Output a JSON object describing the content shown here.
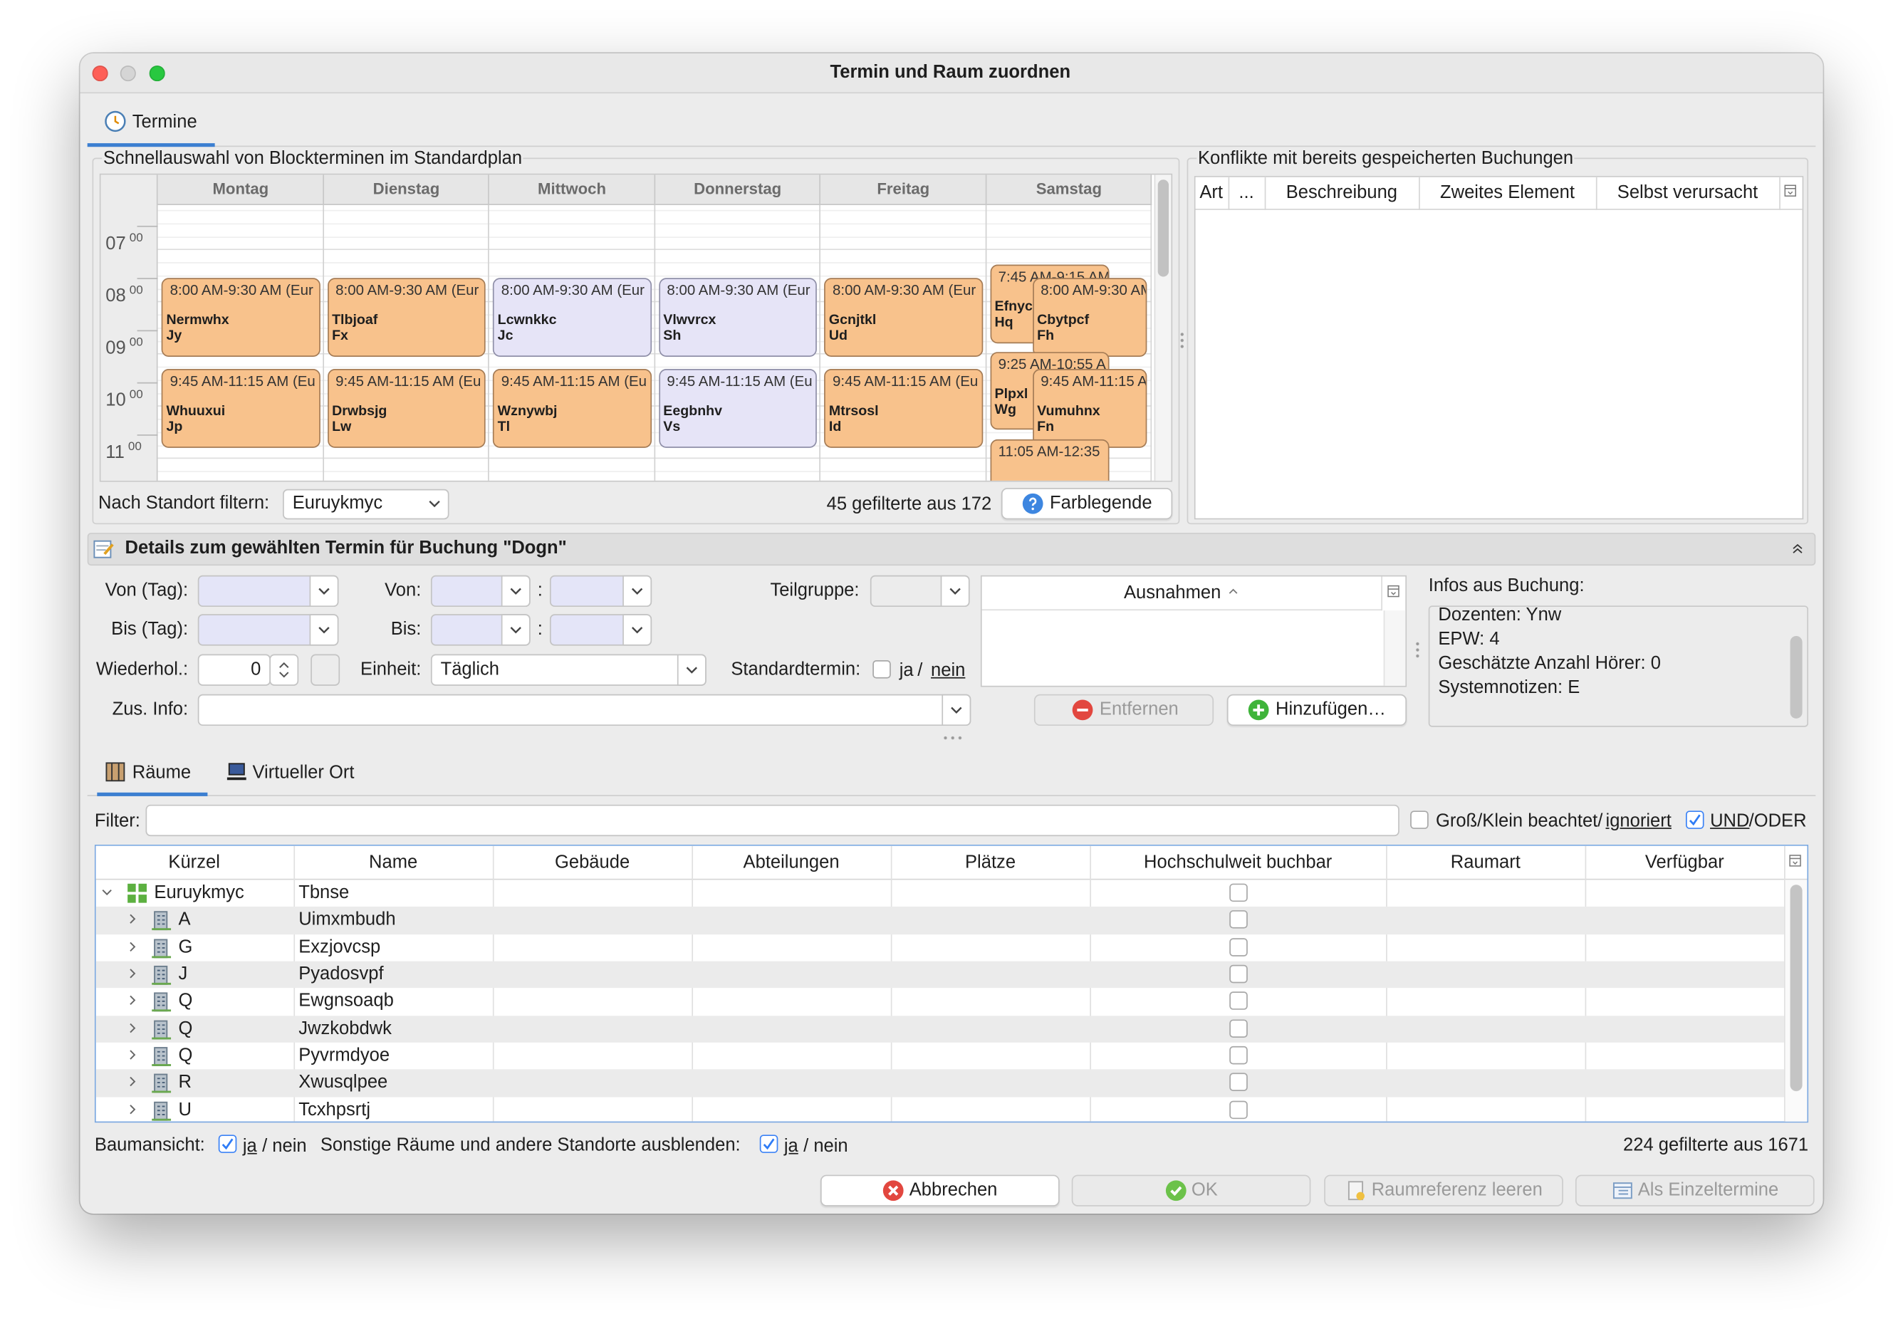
{
  "window": {
    "title": "Termin und Raum zuordnen"
  },
  "tabs": {
    "main": "Termine",
    "rooms": "Räume",
    "virtual": "Virtueller Ort"
  },
  "schedule": {
    "title": "Schnellauswahl von Blockterminen im Standardplan",
    "hours": [
      {
        "hour": "07",
        "minutes": "00"
      },
      {
        "hour": "08",
        "minutes": "00"
      },
      {
        "hour": "09",
        "minutes": "00"
      },
      {
        "hour": "10",
        "minutes": "00"
      },
      {
        "hour": "11",
        "minutes": "00"
      }
    ],
    "days": [
      {
        "name": "Montag",
        "events": [
          {
            "time": "8:00 AM-9:30 AM (Eur",
            "name": "Nermwhx",
            "code": "Jy",
            "color": "#f8c28c"
          },
          {
            "time": "9:45 AM-11:15 AM (Eu",
            "name": "Whuuxui",
            "code": "Jp",
            "color": "#f8c28c"
          }
        ]
      },
      {
        "name": "Dienstag",
        "events": [
          {
            "time": "8:00 AM-9:30 AM (Eur",
            "name": "Tlbjoaf",
            "code": "Fx",
            "color": "#f8c28c"
          },
          {
            "time": "9:45 AM-11:15 AM (Eu",
            "name": "Drwbsjg",
            "code": "Lw",
            "color": "#f8c28c"
          }
        ]
      },
      {
        "name": "Mittwoch",
        "events": [
          {
            "time": "8:00 AM-9:30 AM (Eur",
            "name": "Lcwnkkc",
            "code": "Jc",
            "color": "#e6e4f7"
          },
          {
            "time": "9:45 AM-11:15 AM (Eu",
            "name": "Wznywbj",
            "code": "Tl",
            "color": "#f8c28c"
          }
        ]
      },
      {
        "name": "Donnerstag",
        "events": [
          {
            "time": "8:00 AM-9:30 AM (Eur",
            "name": "Vlwvrcx",
            "code": "Sh",
            "color": "#e6e4f7"
          },
          {
            "time": "9:45 AM-11:15 AM (Eu",
            "name": "Eegbnhv",
            "code": "Vs",
            "color": "#e6e4f7"
          }
        ]
      },
      {
        "name": "Freitag",
        "events": [
          {
            "time": "8:00 AM-9:30 AM (Eur",
            "name": "Gcnjtkl",
            "code": "Ud",
            "color": "#f8c28c"
          },
          {
            "time": "9:45 AM-11:15 AM (Eu",
            "name": "Mtrsosl",
            "code": "Id",
            "color": "#f8c28c"
          }
        ]
      },
      {
        "name": "Samstag",
        "events": [
          {
            "time": "7:45 AM-9:15 AM",
            "name": "Efnyc",
            "code": "Hq",
            "color": "#f8c28c"
          },
          {
            "time": "8:00 AM-9:30 AM",
            "name": "Cbytpcf",
            "code": "Fh",
            "color": "#f8c28c"
          },
          {
            "time": "9:25 AM-10:55 A",
            "name": "Plpxl",
            "code": "Wg",
            "color": "#f8c28c"
          },
          {
            "time": "9:45 AM-11:15 A",
            "name": "Vumuhnx",
            "code": "Fn",
            "color": "#f8c28c"
          },
          {
            "time": "11:05 AM-12:35",
            "color": "#f8c28c"
          }
        ]
      }
    ],
    "location_filter": {
      "label": "Nach Standort filtern:",
      "value": "Euruykmyc"
    },
    "count": "45 gefilterte aus 172",
    "legend_button": "Farblegende"
  },
  "conflicts": {
    "title": "Konflikte mit bereits gespeicherten Buchungen",
    "columns": [
      "Art",
      "...",
      "Beschreibung",
      "Zweites Element",
      "Selbst verursacht"
    ]
  },
  "details": {
    "title": "Details zum gewählten Termin für Buchung \"Dogn\"",
    "from_day": "Von (Tag):",
    "to_day": "Bis (Tag):",
    "repeat": {
      "label": "Wiederhol.:",
      "value": 0
    },
    "extra_info": "Zus. Info:",
    "from": "Von:",
    "to": "Bis:",
    "separator": ":",
    "unit": {
      "label": "Einheit:",
      "value": "Täglich"
    },
    "subgroup": "Teilgruppe:",
    "standard": {
      "label": "Standardtermin:",
      "checked": false,
      "yes": "ja",
      "slash": "/",
      "no": "nein"
    },
    "exceptions": "Ausnahmen",
    "remove": "Entfernen",
    "add": "Hinzufügen…",
    "info": {
      "label": "Infos aus Buchung:",
      "lines": [
        "Dozenten: Ynw",
        "EPW: 4",
        "Geschätzte Anzahl Hörer: 0",
        "Systemnotizen: E"
      ]
    }
  },
  "rooms": {
    "filter": "Filter:",
    "case": {
      "checked": false,
      "text": "Groß/Klein beachtet/",
      "link": "ignoriert"
    },
    "logic": {
      "checked": true,
      "link": "UND",
      "text": "/ODER"
    },
    "columns": [
      "Kürzel",
      "Name",
      "Gebäude",
      "Abteilungen",
      "Plätze",
      "Hochschulweit buchbar",
      "Raumart",
      "Verfügbar"
    ],
    "root": {
      "code": "Euruykmyc",
      "name": "Tbnse",
      "bookable": false,
      "children": [
        {
          "code": "A",
          "name": "Uimxmbudh",
          "bookable": false
        },
        {
          "code": "G",
          "name": "Exzjovcsp",
          "bookable": false
        },
        {
          "code": "J",
          "name": "Pyadosvpf",
          "bookable": false
        },
        {
          "code": "Q",
          "name": "Ewgnsoaqb",
          "bookable": false
        },
        {
          "code": "Q",
          "name": "Jwzkobdwk",
          "bookable": false
        },
        {
          "code": "Q",
          "name": "Pyvrmdyoe",
          "bookable": false
        },
        {
          "code": "R",
          "name": "Xwusqlpee",
          "bookable": false
        },
        {
          "code": "U",
          "name": "Tcxhpsrtj",
          "bookable": false
        }
      ]
    },
    "tree_view": {
      "label": "Baumansicht:",
      "checked": true,
      "yes": "ja",
      "no": "/ nein"
    },
    "hide_other": {
      "label": "Sonstige Räume und andere Standorte ausblenden:",
      "checked": true,
      "yes": "ja",
      "no": "/ nein"
    },
    "count": "224 gefilterte aus 1671"
  },
  "buttons": {
    "cancel": "Abbrechen",
    "ok": "OK",
    "clear": "Raumreferenz leeren",
    "single": "Als Einzeltermine"
  }
}
